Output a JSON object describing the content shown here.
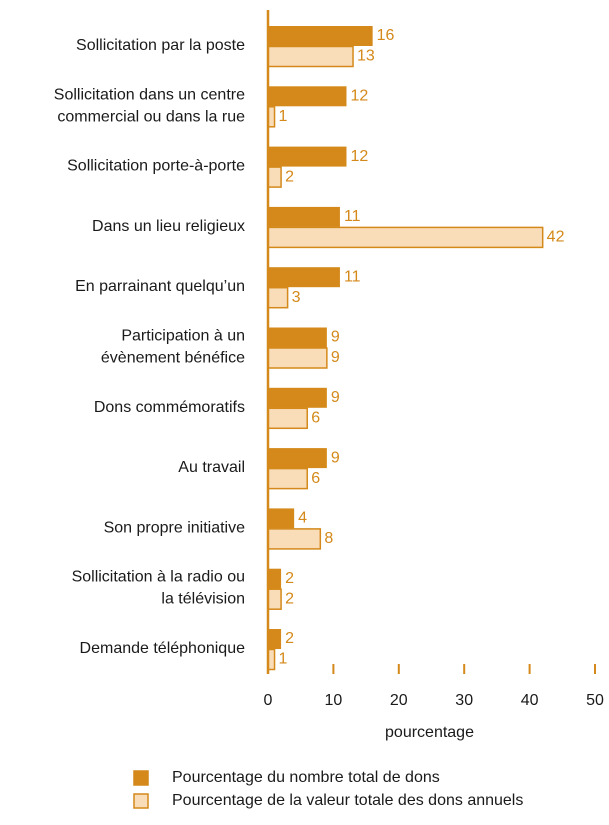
{
  "chart_data": {
    "type": "bar",
    "orientation": "horizontal",
    "categories": [
      [
        "Sollicitation par la poste"
      ],
      [
        "Sollicitation dans un centre",
        "commercial ou dans la rue"
      ],
      [
        "Sollicitation porte-à-porte"
      ],
      [
        "Dans un lieu religieux"
      ],
      [
        "En parrainant quelqu’un"
      ],
      [
        "Participation à un",
        "évènement bénéfice"
      ],
      [
        "Dons commémoratifs"
      ],
      [
        "Au travail"
      ],
      [
        "Son propre initiative"
      ],
      [
        "Sollicitation à la radio ou",
        "la télévision"
      ],
      [
        "Demande téléphonique"
      ]
    ],
    "series": [
      {
        "name": "Pourcentage du nombre total de dons",
        "color": "#d4891a",
        "values": [
          16,
          12,
          12,
          11,
          11,
          9,
          9,
          9,
          4,
          2,
          2
        ]
      },
      {
        "name": "Pourcentage de la valeur totale des dons annuels",
        "color": "#f9dcb8",
        "values": [
          13,
          1,
          2,
          42,
          3,
          9,
          6,
          6,
          8,
          2,
          1
        ]
      }
    ],
    "xlabel": "pourcentage",
    "xlim": [
      0,
      50
    ],
    "xticks": [
      0,
      10,
      20,
      30,
      40,
      50
    ],
    "legend": "bottom"
  }
}
